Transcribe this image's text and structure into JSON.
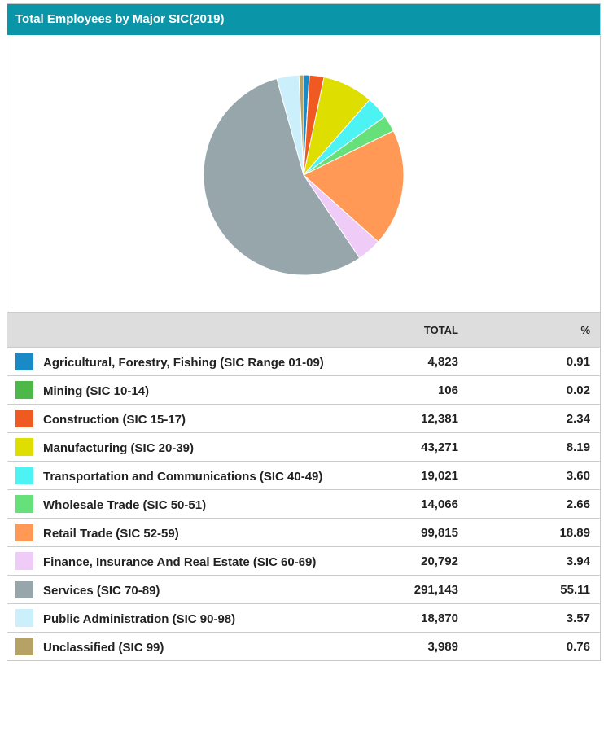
{
  "chart_data": {
    "type": "pie",
    "title": "Total Employees by Major SIC(2019)",
    "columns": [
      "TOTAL",
      "%"
    ],
    "categories": [
      "Agricultural, Forestry, Fishing (SIC Range 01-09)",
      "Mining (SIC 10-14)",
      "Construction (SIC 15-17)",
      "Manufacturing (SIC 20-39)",
      "Transportation and Communications (SIC 40-49)",
      "Wholesale Trade (SIC 50-51)",
      "Retail Trade (SIC 52-59)",
      "Finance, Insurance And Real Estate (SIC 60-69)",
      "Services (SIC 70-89)",
      "Public Administration (SIC 90-98)",
      "Unclassified (SIC 99)"
    ],
    "values": [
      4823,
      106,
      12381,
      43271,
      19021,
      14066,
      99815,
      20792,
      291143,
      18870,
      3989
    ],
    "value_labels": [
      "4,823",
      "106",
      "12,381",
      "43,271",
      "19,021",
      "14,066",
      "99,815",
      "20,792",
      "291,143",
      "18,870",
      "3,989"
    ],
    "percents": [
      0.91,
      0.02,
      2.34,
      8.19,
      3.6,
      2.66,
      18.89,
      3.94,
      55.11,
      3.57,
      0.76
    ],
    "percent_labels": [
      "0.91",
      "0.02",
      "2.34",
      "8.19",
      "3.60",
      "2.66",
      "18.89",
      "3.94",
      "55.11",
      "3.57",
      "0.76"
    ],
    "colors": [
      "#1a8ac6",
      "#4db849",
      "#f05a22",
      "#dede00",
      "#4df2f2",
      "#66e07a",
      "#ff9955",
      "#eeccf7",
      "#97a6ab",
      "#ccf0fb",
      "#b5a264"
    ]
  }
}
